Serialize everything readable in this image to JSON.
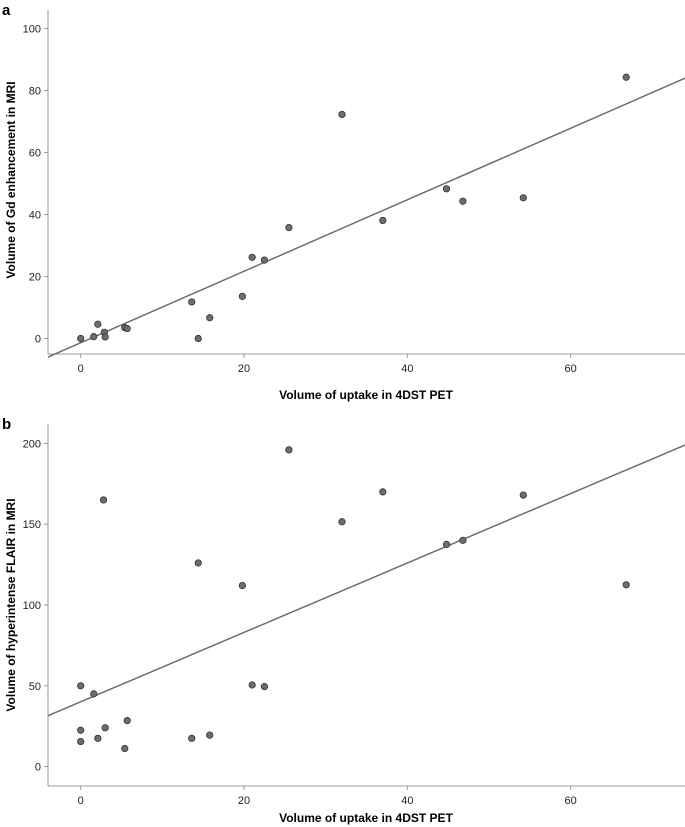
{
  "chart_data": [
    {
      "type": "scatter",
      "panel": "a",
      "xlabel": "Volume of uptake in 4DST PET",
      "ylabel": "Volume of Gd enhancement in MRI",
      "xlim": [
        -4,
        74
      ],
      "ylim": [
        -5,
        106
      ],
      "xticks": [
        0,
        20,
        40,
        60
      ],
      "yticks": [
        0,
        20,
        40,
        60,
        80,
        100
      ],
      "grid": false,
      "fit_line": {
        "x": [
          -4,
          74
        ],
        "y": [
          -6,
          84
        ]
      },
      "points": [
        {
          "x": 0,
          "y": 0
        },
        {
          "x": 1.6,
          "y": 0.6
        },
        {
          "x": 2.1,
          "y": 4.6
        },
        {
          "x": 2.9,
          "y": 2
        },
        {
          "x": 3,
          "y": 0.5
        },
        {
          "x": 5.4,
          "y": 3.5
        },
        {
          "x": 5.7,
          "y": 3.2
        },
        {
          "x": 13.6,
          "y": 11.8
        },
        {
          "x": 14.4,
          "y": 0
        },
        {
          "x": 15.8,
          "y": 6.7
        },
        {
          "x": 19.8,
          "y": 13.6
        },
        {
          "x": 21,
          "y": 26.2
        },
        {
          "x": 22.5,
          "y": 25.3
        },
        {
          "x": 25.5,
          "y": 35.8
        },
        {
          "x": 32,
          "y": 72.3
        },
        {
          "x": 37,
          "y": 38.1
        },
        {
          "x": 44.8,
          "y": 48.3
        },
        {
          "x": 46.8,
          "y": 44.3
        },
        {
          "x": 54.2,
          "y": 45.4
        },
        {
          "x": 66.8,
          "y": 84.3
        }
      ]
    },
    {
      "type": "scatter",
      "panel": "b",
      "xlabel": "Volume of uptake in 4DST PET",
      "ylabel": "Volume of hyperintense FLAIR in MRI",
      "xlim": [
        -4,
        74
      ],
      "ylim": [
        -12,
        212
      ],
      "xticks": [
        0,
        20,
        40,
        60
      ],
      "yticks": [
        0,
        50,
        100,
        150,
        200
      ],
      "grid": false,
      "fit_line": {
        "x": [
          -4,
          74
        ],
        "y": [
          31.5,
          199
        ]
      },
      "points": [
        {
          "x": 0,
          "y": 50
        },
        {
          "x": 0,
          "y": 22.5
        },
        {
          "x": 0,
          "y": 15.5
        },
        {
          "x": 1.6,
          "y": 45
        },
        {
          "x": 2.1,
          "y": 17.5
        },
        {
          "x": 2.8,
          "y": 165
        },
        {
          "x": 3,
          "y": 24
        },
        {
          "x": 5.4,
          "y": 11.2
        },
        {
          "x": 5.7,
          "y": 28.5
        },
        {
          "x": 13.6,
          "y": 17.5
        },
        {
          "x": 14.4,
          "y": 126
        },
        {
          "x": 15.8,
          "y": 19.5
        },
        {
          "x": 19.8,
          "y": 112
        },
        {
          "x": 21,
          "y": 50.5
        },
        {
          "x": 22.5,
          "y": 49.5
        },
        {
          "x": 25.5,
          "y": 196
        },
        {
          "x": 32,
          "y": 151.5
        },
        {
          "x": 37,
          "y": 170
        },
        {
          "x": 44.8,
          "y": 137.5
        },
        {
          "x": 46.8,
          "y": 140
        },
        {
          "x": 54.2,
          "y": 168
        },
        {
          "x": 66.8,
          "y": 112.5
        }
      ]
    }
  ]
}
